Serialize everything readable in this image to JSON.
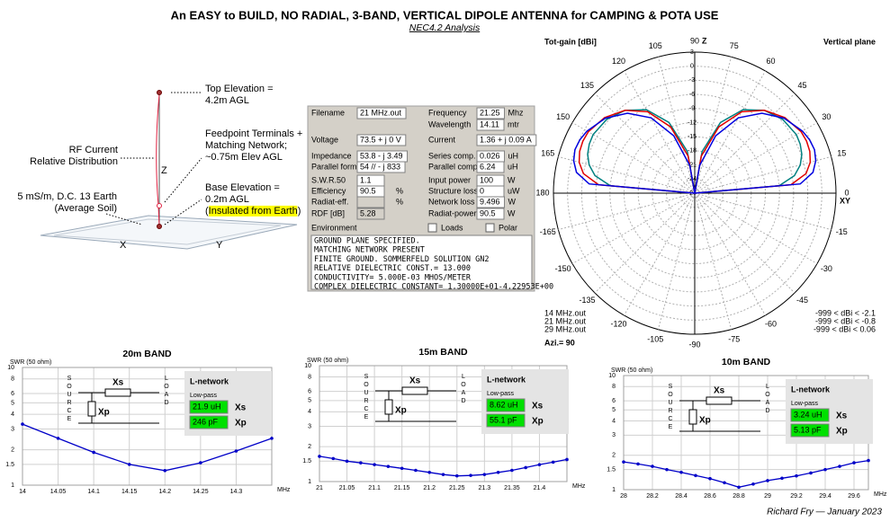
{
  "title": "An EASY to BUILD, NO RADIAL, 3-BAND, VERTICAL DIPOLE ANTENNA for CAMPING & POTA USE",
  "subtitle": "NEC4.2 Analysis",
  "footer": "Richard Fry — January 2023",
  "antenna": {
    "axes": [
      "Z",
      "X",
      "Y"
    ],
    "labels": [
      {
        "lines": [
          "Top Elevation =",
          "4.2m AGL"
        ]
      },
      {
        "lines": [
          "Feedpoint Terminals +",
          "Matching Network;",
          "~0.75m Elev AGL"
        ]
      },
      {
        "lines": [
          "RF Current",
          "Relative Distribution"
        ]
      },
      {
        "lines": [
          "Base Elevation =",
          "0.2m AGL",
          "(Insulated from Earth)"
        ]
      },
      {
        "lines": [
          "5 mS/m, D.C. 13 Earth",
          "(Average Soil)"
        ]
      }
    ]
  },
  "results": {
    "left": [
      {
        "label": "Filename",
        "value": "21 MHz.out"
      },
      {
        "label": "Voltage",
        "value": "73.5 + j 0 V"
      },
      {
        "label": "Impedance",
        "value": "53.8 - j 3.49"
      },
      {
        "label": "Parallel form",
        "value": "54 // - j 833"
      },
      {
        "label": "S.W.R.50",
        "value": "1.1"
      },
      {
        "label": "Efficiency",
        "value": "90.5",
        "unit": "%"
      },
      {
        "label": "Radiat-eff.",
        "unit": "%"
      },
      {
        "label": "RDF [dB]",
        "value": "5.28"
      }
    ],
    "right": [
      {
        "label": "Frequency",
        "value": "21.25",
        "unit": "Mhz"
      },
      {
        "label": "Wavelength",
        "value": "14.11",
        "unit": "mtr"
      },
      {
        "label": "Current",
        "value": "1.36 + j 0.09 A"
      },
      {
        "label": "Series comp.",
        "value": "0.026",
        "unit": "uH"
      },
      {
        "label": "Parallel comp.",
        "value": "6.24",
        "unit": "uH"
      },
      {
        "label": "Input power",
        "value": "100",
        "unit": "W"
      },
      {
        "label": "Structure loss",
        "value": "0",
        "unit": "uW"
      },
      {
        "label": "Network loss",
        "value": "9.496",
        "unit": "W"
      },
      {
        "label": "Radiat-power",
        "value": "90.5",
        "unit": "W"
      }
    ],
    "environment": "Environment",
    "checks": [
      "Loads",
      "Polar"
    ],
    "notes": [
      "GROUND PLANE SPECIFIED.",
      "MATCHING NETWORK PRESENT",
      "FINITE GROUND.  SOMMERFELD SOLUTION GN2",
      "RELATIVE DIELECTRIC CONST.= 13.000",
      "CONDUCTIVITY= 5.000E-03 MHOS/METER",
      "COMPLEX DIELECTRIC CONSTANT= 1.30000E+01-4.22953E+00"
    ]
  },
  "chart_data": [
    {
      "type": "polar",
      "title": "Tot-gain [dBi]",
      "subtitle": "Vertical plane",
      "azimuth": "Azi.= 90",
      "axis_labels": {
        "vertical": "Z",
        "horizontal": "XY"
      },
      "rlim": [
        -27,
        3
      ],
      "rticks": [
        3,
        0,
        -3,
        -6,
        -9,
        -12,
        -15,
        -18,
        -21,
        -24,
        -27
      ],
      "angle_ticks": [
        0,
        15,
        30,
        45,
        60,
        75,
        90,
        105,
        120,
        135,
        150,
        165,
        180,
        -165,
        -150,
        -135,
        -120,
        -105,
        -90,
        -75,
        -60,
        -45,
        -30,
        -15
      ],
      "x": [
        0,
        5,
        10,
        15,
        20,
        25,
        30,
        40,
        50,
        60,
        70,
        80,
        90,
        100,
        110,
        120,
        130,
        140,
        150,
        155,
        160,
        165,
        170,
        175,
        180
      ],
      "series": [
        {
          "name": "14 MHz.out",
          "range": "-999 < dBi < -2.1",
          "color": "#008080",
          "values": [
            -27,
            -9,
            -5.5,
            -3.8,
            -2.8,
            -2.3,
            -2.1,
            -2.6,
            -4,
            -6.5,
            -11,
            -18,
            -27,
            -18,
            -11,
            -6.5,
            -4,
            -2.6,
            -2.1,
            -2.3,
            -2.8,
            -3.8,
            -5.5,
            -9,
            -27
          ]
        },
        {
          "name": "21 MHz.out",
          "range": "-999 < dBi < -0.8",
          "color": "#e00000",
          "values": [
            -27,
            -6.5,
            -3,
            -1.6,
            -1,
            -0.8,
            -0.9,
            -2,
            -4,
            -7,
            -12,
            -19,
            -27,
            -19,
            -12,
            -7,
            -4,
            -2,
            -0.9,
            -0.8,
            -1,
            -1.6,
            -3,
            -6.5,
            -27
          ]
        },
        {
          "name": "29 MHz.out",
          "range": "-999 < dBi < 0.06",
          "color": "#0000e0",
          "values": [
            -27,
            -4.5,
            -1.5,
            -0.4,
            0.06,
            -0.1,
            -0.6,
            -2.2,
            -4.8,
            -8.5,
            -14,
            -21,
            -27,
            -21,
            -14,
            -8.5,
            -4.8,
            -2.2,
            -0.6,
            -0.1,
            0.06,
            -0.4,
            -1.5,
            -4.5,
            -27
          ]
        }
      ]
    },
    {
      "type": "line",
      "title": "20m BAND",
      "ylabel": "SWR (50 ohm)",
      "xlabel": "MHz",
      "log_y": true,
      "grid": true,
      "color": "#0000c8",
      "x": [
        14,
        14.05,
        14.1,
        14.15,
        14.2,
        14.25,
        14.3,
        14.35
      ],
      "values": [
        3.3,
        2.5,
        1.9,
        1.5,
        1.33,
        1.55,
        1.95,
        2.5
      ],
      "xlim": [
        14,
        14.35
      ],
      "xticks": [
        14,
        14.05,
        14.1,
        14.15,
        14.2,
        14.25,
        14.3
      ],
      "ylim": [
        1,
        10
      ],
      "yticks": [
        1,
        1.5,
        2,
        3,
        4,
        5,
        6,
        8,
        10
      ],
      "network": {
        "title": "L-network",
        "subtitle": "Low-pass",
        "xs": "21.9 uH",
        "xp": "246 pF",
        "xs_label": "Xs",
        "xp_label": "Xp",
        "source": "SOURCE",
        "load": "LOAD"
      }
    },
    {
      "type": "line",
      "title": "15m BAND",
      "ylabel": "SWR (50 ohm)",
      "xlabel": "MHz",
      "log_y": true,
      "grid": true,
      "color": "#0000c8",
      "x": [
        21,
        21.025,
        21.05,
        21.075,
        21.1,
        21.125,
        21.15,
        21.175,
        21.2,
        21.225,
        21.25,
        21.275,
        21.3,
        21.325,
        21.35,
        21.375,
        21.4,
        21.425,
        21.45
      ],
      "values": [
        1.65,
        1.58,
        1.5,
        1.45,
        1.4,
        1.35,
        1.3,
        1.25,
        1.2,
        1.15,
        1.12,
        1.13,
        1.15,
        1.2,
        1.25,
        1.32,
        1.4,
        1.47,
        1.55
      ],
      "xlim": [
        21,
        21.45
      ],
      "xticks": [
        21,
        21.05,
        21.1,
        21.15,
        21.2,
        21.25,
        21.3,
        21.35,
        21.4
      ],
      "ylim": [
        1,
        10
      ],
      "yticks": [
        1,
        1.5,
        2,
        3,
        4,
        5,
        6,
        8,
        10
      ],
      "network": {
        "title": "L-network",
        "subtitle": "Low-pass",
        "xs": "8.62 uH",
        "xp": "55.1 pF",
        "xs_label": "Xs",
        "xp_label": "Xp",
        "source": "SOURCE",
        "load": "LOAD"
      }
    },
    {
      "type": "line",
      "title": "10m BAND",
      "ylabel": "SWR (50 ohm)",
      "xlabel": "MHz",
      "log_y": true,
      "grid": true,
      "color": "#0000c8",
      "x": [
        28,
        28.1,
        28.2,
        28.3,
        28.4,
        28.5,
        28.6,
        28.7,
        28.8,
        28.9,
        29,
        29.1,
        29.2,
        29.3,
        29.4,
        29.5,
        29.6,
        29.7
      ],
      "values": [
        1.75,
        1.68,
        1.6,
        1.5,
        1.42,
        1.33,
        1.25,
        1.15,
        1.05,
        1.12,
        1.2,
        1.26,
        1.32,
        1.4,
        1.5,
        1.6,
        1.72,
        1.8
      ],
      "xlim": [
        28,
        29.7
      ],
      "xticks": [
        28,
        28.2,
        28.4,
        28.6,
        28.8,
        29,
        29.2,
        29.4,
        29.6
      ],
      "ylim": [
        1,
        10
      ],
      "yticks": [
        1,
        1.5,
        2,
        3,
        4,
        5,
        6,
        8,
        10
      ],
      "network": {
        "title": "L-network",
        "subtitle": "Low-pass",
        "xs": "3.24 uH",
        "xp": "5.13 pF",
        "xs_label": "Xs",
        "xp_label": "Xp",
        "source": "SOURCE",
        "load": "LOAD"
      }
    }
  ]
}
